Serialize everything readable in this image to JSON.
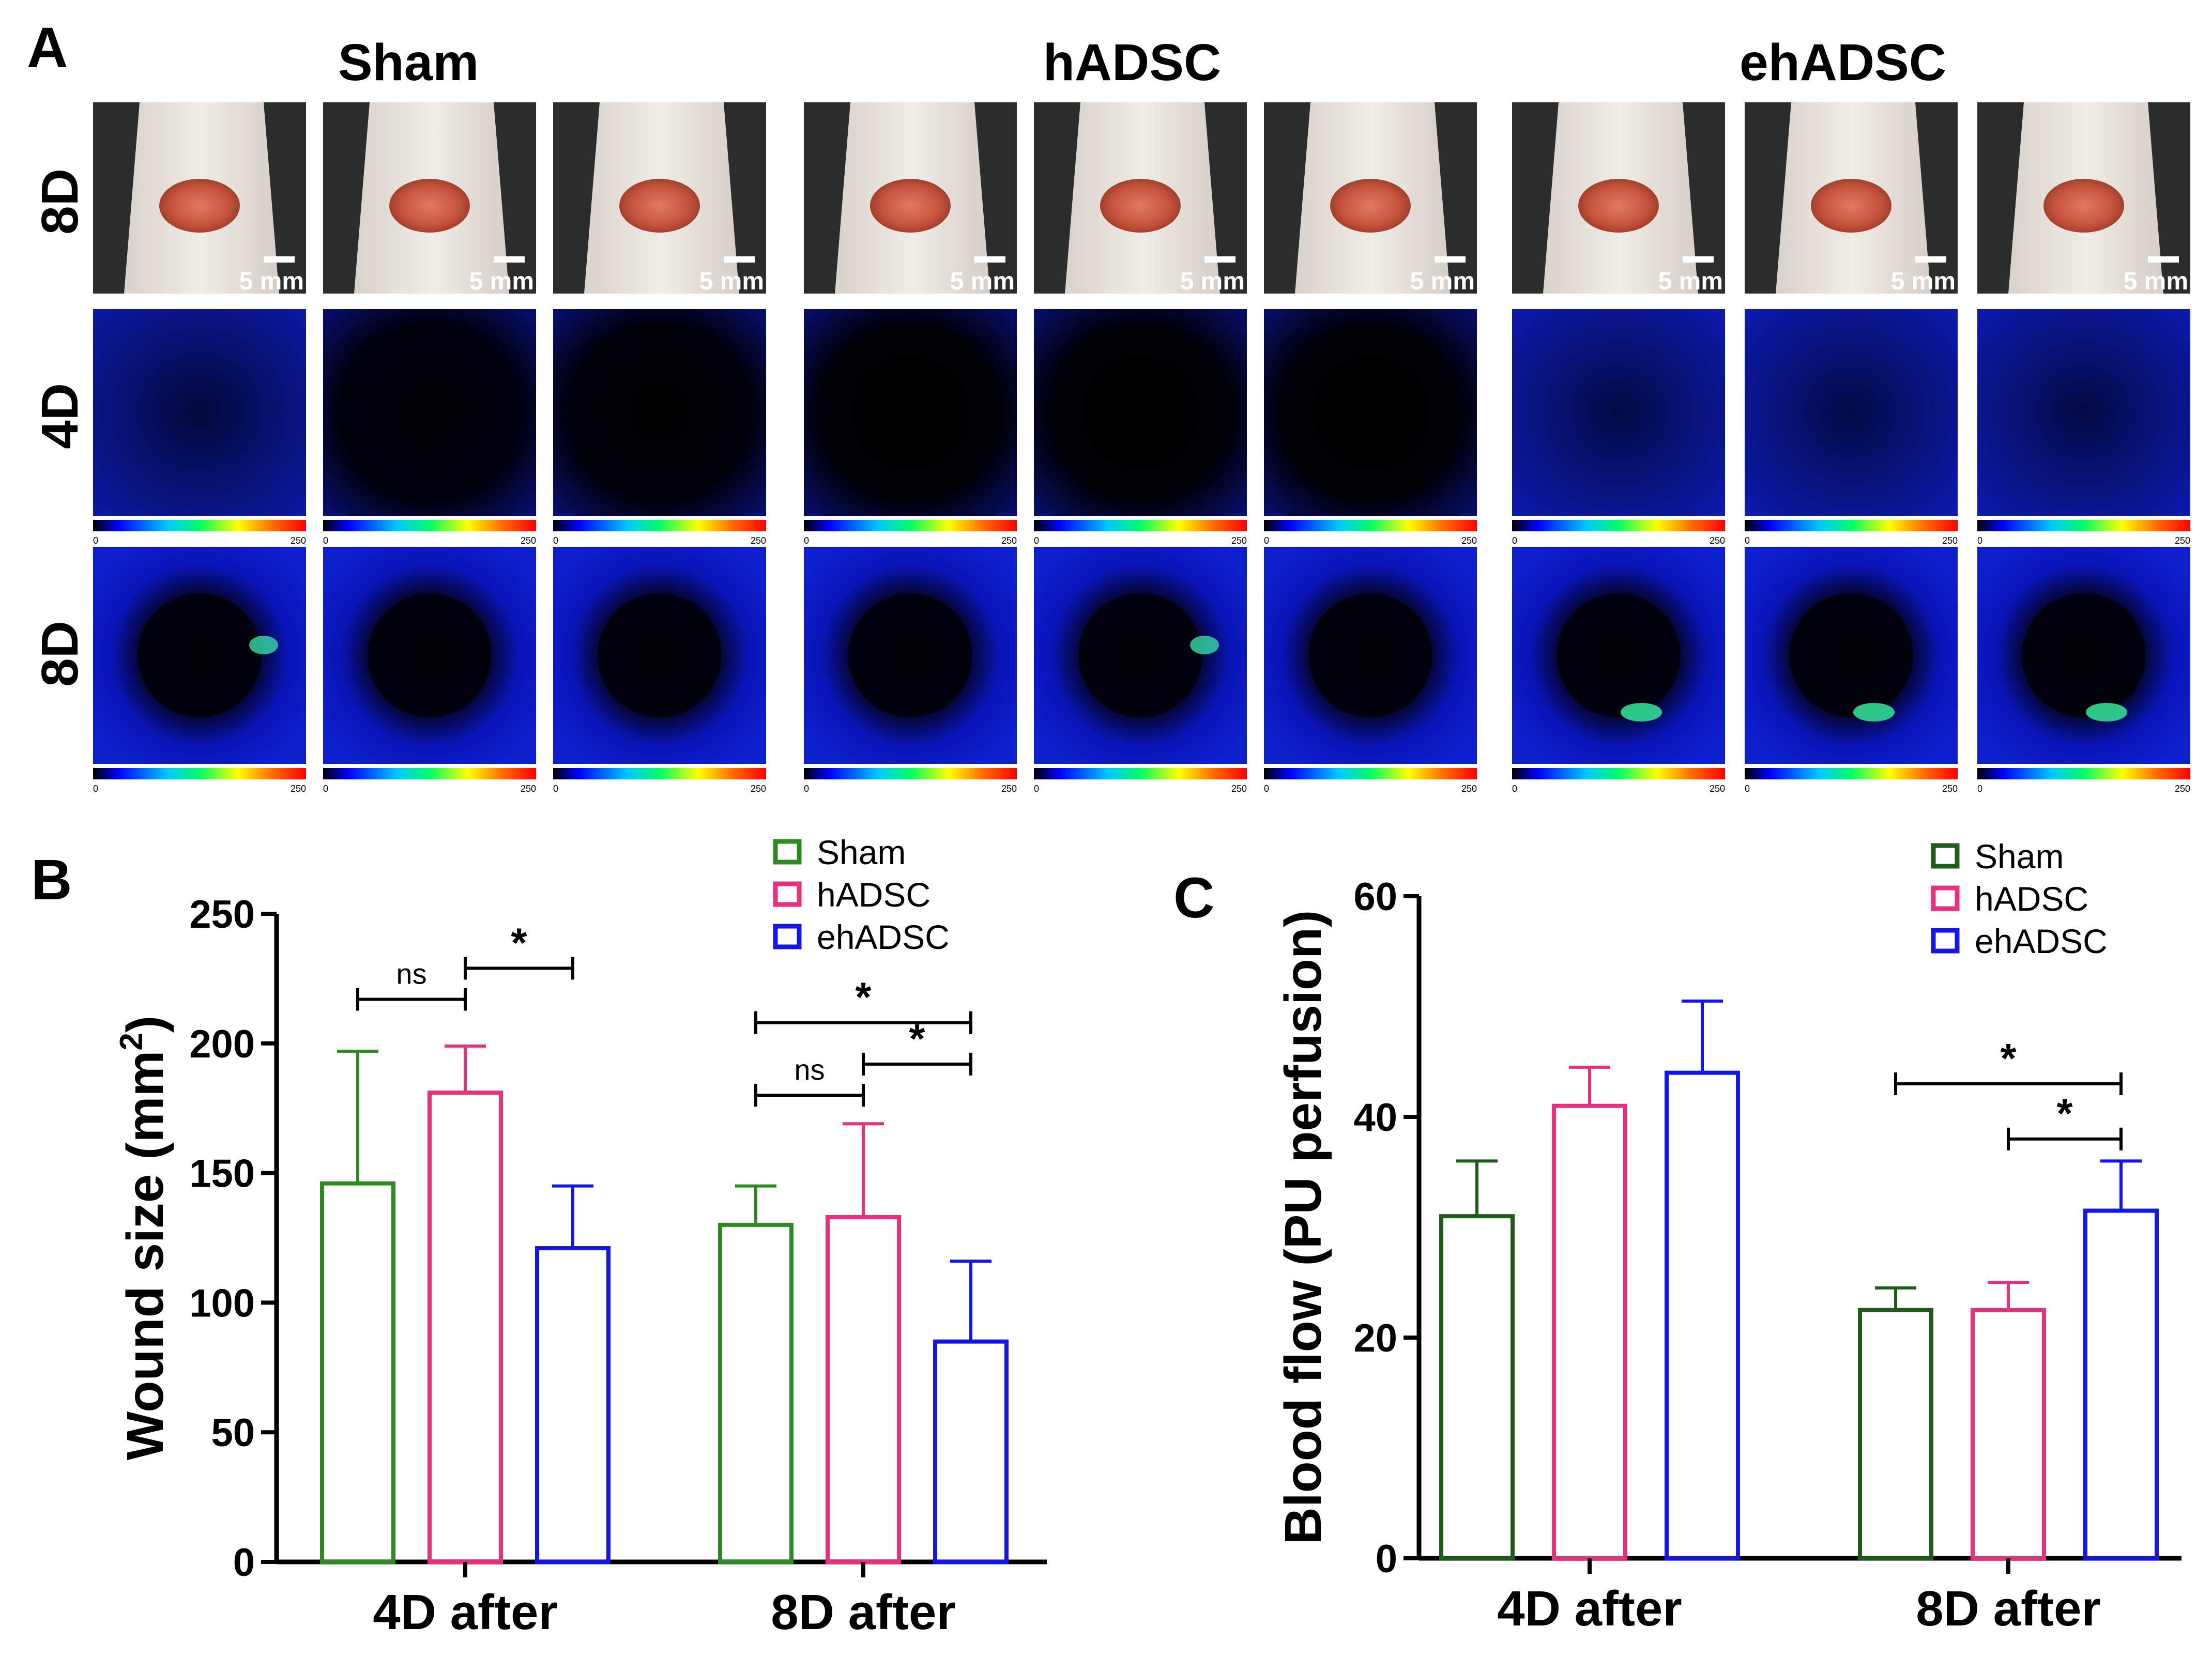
{
  "panel_a": {
    "label": "A",
    "groups": [
      "Sham",
      "hADSC",
      "ehADSC"
    ],
    "row_labels": [
      "8D",
      "4D",
      "8D"
    ],
    "scale_bar_text": "5 mm",
    "colorbar_min": "0",
    "colorbar_max": "250"
  },
  "chart_data": [
    {
      "panel_label": "B",
      "type": "bar",
      "categories": [
        "4D after",
        "8D after"
      ],
      "series": [
        {
          "name": "Sham",
          "color": "#2e8b22",
          "values": [
            146,
            130
          ],
          "error": [
            51,
            15
          ]
        },
        {
          "name": "hADSC",
          "color": "#e8307e",
          "values": [
            181,
            133
          ],
          "error": [
            18,
            36
          ]
        },
        {
          "name": "ehADSC",
          "color": "#1515e8",
          "values": [
            121,
            85
          ],
          "error": [
            24,
            31
          ]
        }
      ],
      "ylabel": "Wound size (mm",
      "ylabel_sup": "2",
      "ylabel_close": ")",
      "ylim": [
        0,
        250
      ],
      "yticks": [
        "0",
        "50",
        "100",
        "150",
        "200",
        "250"
      ],
      "legend_position": "top-right",
      "significance": [
        {
          "category": 0,
          "from_series": 0,
          "to_series": 1,
          "level": 217,
          "label": "ns"
        },
        {
          "category": 0,
          "from_series": 1,
          "to_series": 2,
          "level": 229,
          "label": "*"
        },
        {
          "category": 1,
          "from_series": 0,
          "to_series": 2,
          "level": 208,
          "label": "*"
        },
        {
          "category": 1,
          "from_series": 1,
          "to_series": 2,
          "level": 192,
          "label": "*"
        },
        {
          "category": 1,
          "from_series": 0,
          "to_series": 1,
          "level": 180,
          "label": "ns"
        }
      ]
    },
    {
      "panel_label": "C",
      "type": "bar",
      "categories": [
        "4D after",
        "8D after"
      ],
      "series": [
        {
          "name": "Sham",
          "color": "#1f5c1a",
          "values": [
            31,
            22.5
          ],
          "error": [
            5,
            2
          ]
        },
        {
          "name": "hADSC",
          "color": "#e8307e",
          "values": [
            41,
            22.5
          ],
          "error": [
            3.5,
            2.5
          ]
        },
        {
          "name": "ehADSC",
          "color": "#1515e8",
          "values": [
            44,
            31.5
          ],
          "error": [
            6.5,
            4.5
          ]
        }
      ],
      "ylabel": "Blood flow (PU perfusion)",
      "ylim": [
        0,
        60
      ],
      "yticks": [
        "0",
        "20",
        "40",
        "60"
      ],
      "legend_position": "top-right",
      "significance": [
        {
          "category": 1,
          "from_series": 0,
          "to_series": 2,
          "level": 43,
          "label": "*"
        },
        {
          "category": 1,
          "from_series": 1,
          "to_series": 2,
          "level": 38,
          "label": "*"
        }
      ]
    }
  ]
}
